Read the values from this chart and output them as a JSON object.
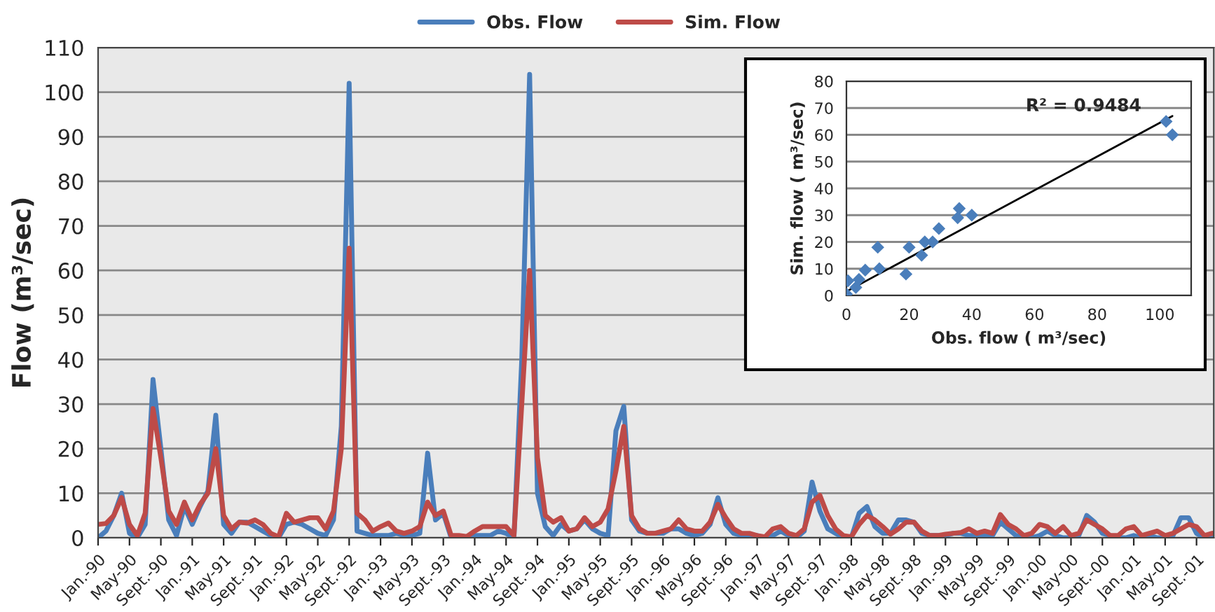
{
  "chart_data": [
    {
      "type": "line",
      "ylabel": "Flow (m³/sec)",
      "ylim": [
        0,
        110
      ],
      "yticks": [
        0,
        10,
        20,
        30,
        40,
        50,
        60,
        70,
        80,
        90,
        100,
        110
      ],
      "grid": "y",
      "legend": "top",
      "marker": "none",
      "line_style": "solid",
      "categories": [
        "Jan.-90",
        null,
        null,
        null,
        "May-90",
        null,
        null,
        null,
        "Sept.-90",
        null,
        null,
        null,
        "Jan.-91",
        null,
        null,
        null,
        "May-91",
        null,
        null,
        null,
        "Sept.-91",
        null,
        null,
        null,
        "Jan.-92",
        null,
        null,
        null,
        "May-92",
        null,
        null,
        null,
        "Sept.-92",
        null,
        null,
        null,
        "Jan.-93",
        null,
        null,
        null,
        "May-93",
        null,
        null,
        null,
        "Sept.-93",
        null,
        null,
        null,
        "Jan.-94",
        null,
        null,
        null,
        "May-94",
        null,
        null,
        null,
        "Sept.-94",
        null,
        null,
        null,
        "Jan.-95",
        null,
        null,
        null,
        "May-95",
        null,
        null,
        null,
        "Sept.-95",
        null,
        null,
        null,
        "Jan.-96",
        null,
        null,
        null,
        "May-96",
        null,
        null,
        null,
        "Sept.-96",
        null,
        null,
        null,
        "Jan.-97",
        null,
        null,
        null,
        "May-97",
        null,
        null,
        null,
        "Sept.-97",
        null,
        null,
        null,
        "Jan.-98",
        null,
        null,
        null,
        "May-98",
        null,
        null,
        null,
        "Sept.-98",
        null,
        null,
        null,
        "Jan.-99",
        null,
        null,
        null,
        "May-99",
        null,
        null,
        null,
        "Sept.-99",
        null,
        null,
        null,
        "Jan.-00",
        null,
        null,
        null,
        "May-00",
        null,
        null,
        null,
        "Sept.-00",
        null,
        null,
        null,
        "Jan.-01",
        null,
        null,
        null,
        "May-01",
        null,
        null,
        null,
        "Sept.-01",
        null,
        null
      ],
      "series": [
        {
          "name": "Obs. Flow",
          "color": "#4a7ebb",
          "values": [
            0,
            1.5,
            5,
            10,
            1,
            0,
            3,
            35.5,
            20,
            4,
            0.5,
            7,
            3,
            7,
            10.5,
            27.5,
            3,
            1,
            3.5,
            3.5,
            2.5,
            1.5,
            0.5,
            0,
            3,
            3.5,
            3,
            2,
            1,
            0.5,
            4,
            25,
            102,
            1.5,
            1,
            0.5,
            0.5,
            0.5,
            1,
            0.5,
            0.5,
            1,
            19,
            4,
            5.5,
            0,
            0,
            0,
            0.5,
            0.5,
            0.5,
            1.5,
            1,
            0,
            40,
            104,
            10,
            2.5,
            0.5,
            3,
            1.5,
            2,
            4,
            2,
            1,
            0.5,
            24,
            29.5,
            4,
            1.5,
            1,
            1,
            1,
            2,
            2,
            1,
            0.5,
            1,
            3,
            9,
            3,
            1,
            0.5,
            0.5,
            0.5,
            0,
            0.5,
            1.5,
            0.5,
            0,
            1.5,
            12.5,
            6,
            2,
            1,
            0,
            0,
            5.5,
            7,
            2.5,
            1,
            1,
            4,
            4,
            3.5,
            1,
            0.5,
            0.5,
            0.5,
            1,
            1,
            0.5,
            0.5,
            0.5,
            0.5,
            3.5,
            2,
            0.5,
            0,
            0,
            0.5,
            1.5,
            0.5,
            0,
            0,
            0.5,
            5,
            3.5,
            1,
            0.5,
            0,
            0,
            0.5,
            0,
            0.5,
            0,
            0,
            0.5,
            4.5,
            4.5,
            1,
            0,
            0
          ]
        },
        {
          "name": "Sim. Flow",
          "color": "#be4b48",
          "values": [
            3,
            3.2,
            5,
            9,
            3,
            0.5,
            5.5,
            29,
            18,
            6,
            3,
            8,
            4,
            7.5,
            10,
            20,
            5,
            2,
            3.5,
            3.3,
            4,
            3,
            1,
            0.2,
            5.5,
            3.5,
            4,
            4.5,
            4.5,
            2,
            6,
            20,
            65,
            5.5,
            4,
            1.5,
            2.5,
            3.3,
            1.5,
            1,
            1.5,
            2.5,
            8,
            5,
            6,
            0.5,
            0.5,
            0.3,
            1.5,
            2.5,
            2.5,
            2.5,
            2.5,
            0.5,
            30,
            60,
            18,
            5,
            3.5,
            4.5,
            1.5,
            2,
            4.5,
            2.5,
            3.5,
            6.5,
            15,
            25,
            5,
            2,
            1,
            1,
            1.5,
            2,
            4,
            2,
            1.5,
            1.5,
            3.5,
            7.5,
            4.5,
            2,
            1,
            1,
            0.5,
            0.2,
            2,
            2.5,
            1,
            0.5,
            2,
            8,
            9.5,
            5,
            2,
            0.5,
            0.2,
            3,
            5,
            4,
            2.5,
            0.8,
            2,
            3.5,
            3.5,
            1.5,
            0.5,
            0.5,
            0.8,
            1,
            1.2,
            2,
            1,
            1.5,
            1,
            5.2,
            3,
            2,
            0.5,
            1,
            3,
            2.5,
            1,
            2.5,
            0.5,
            1,
            4,
            3,
            2,
            0.5,
            0.5,
            2,
            2.5,
            0.5,
            1,
            1.5,
            0.5,
            1,
            2,
            3,
            2.5,
            0.5,
            1
          ]
        }
      ]
    },
    {
      "type": "scatter",
      "xlabel": "Obs. flow ( m³/sec)",
      "ylabel": "Sim. flow ( m³/sec)",
      "xlim": [
        0,
        110
      ],
      "ylim": [
        0,
        80
      ],
      "xticks": [
        0,
        20,
        40,
        60,
        80,
        100
      ],
      "yticks": [
        0,
        10,
        20,
        30,
        40,
        50,
        60,
        70,
        80
      ],
      "grid": "y",
      "annotations": [
        "R² = 0.9484"
      ],
      "series": [
        {
          "color": "#4a7ebb",
          "marker": "diamond",
          "x": [
            0,
            0.5,
            3,
            4,
            6,
            10.5,
            10,
            19,
            20,
            24,
            25,
            27.5,
            29.5,
            35.5,
            36,
            40,
            102,
            104
          ],
          "values": [
            0.5,
            5.5,
            3,
            6,
            9.5,
            10,
            18,
            8,
            18,
            15,
            20,
            20,
            25,
            29,
            32.5,
            30,
            65,
            60
          ]
        },
        {
          "type": "line",
          "color": "#000000",
          "x": [
            0,
            104
          ],
          "values": [
            1.5,
            67
          ]
        }
      ]
    }
  ]
}
